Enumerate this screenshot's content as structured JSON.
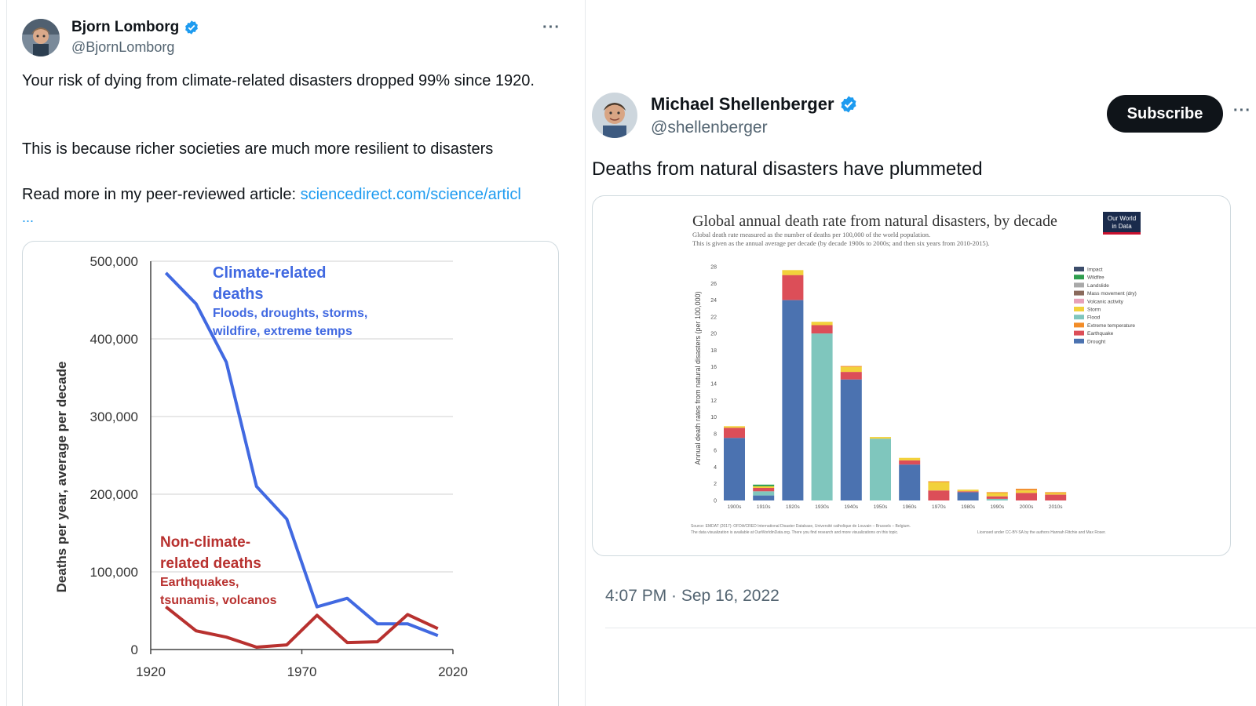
{
  "left_tweet": {
    "author_name": "Bjorn Lomborg",
    "author_handle": "@BjornLomborg",
    "more": "···",
    "text_line1": "Your risk of dying from climate-related disasters dropped 99% since 1920.",
    "text_line2": "This is because richer societies are much more resilient to disasters",
    "text_line3_prefix": "Read more in my peer-reviewed article: ",
    "link_text": "sciencedirect.com/science/articl",
    "link_ellipsis": "...",
    "chart_data": {
      "type": "line",
      "title": "",
      "xlabel": "",
      "ylabel": "Deaths per year, average per decade",
      "xlim": [
        1920,
        2020
      ],
      "ylim": [
        0,
        500000
      ],
      "x_ticks": [
        "1920",
        "1970",
        "2020"
      ],
      "y_ticks": [
        "0",
        "100,000",
        "200,000",
        "300,000",
        "400,000",
        "500,000"
      ],
      "grid": true,
      "series": [
        {
          "name": "Climate-related deaths",
          "subtitle": "Floods, droughts, storms, wildfire, extreme temps",
          "color": "#4169e1",
          "x": [
            1925,
            1935,
            1945,
            1955,
            1965,
            1975,
            1985,
            1995,
            2005,
            2015
          ],
          "y": [
            485000,
            445000,
            370000,
            210000,
            168000,
            55000,
            66000,
            33000,
            33000,
            18000
          ]
        },
        {
          "name": "Non-climate-related deaths",
          "subtitle": "Earthquakes, tsunamis, volcanos",
          "color": "#b8312f",
          "x": [
            1925,
            1935,
            1945,
            1955,
            1965,
            1975,
            1985,
            1995,
            2005,
            2015
          ],
          "y": [
            55000,
            24000,
            16000,
            3000,
            6000,
            44000,
            9000,
            10000,
            45000,
            27000
          ]
        }
      ]
    }
  },
  "right_tweet": {
    "author_name": "Michael Shellenberger",
    "author_handle": "@shellenberger",
    "subscribe_label": "Subscribe",
    "more": "···",
    "text": "Deaths from natural disasters have plummeted",
    "timestamp": "4:07 PM · Sep 16, 2022",
    "chart_data": {
      "type": "bar",
      "stacked": true,
      "title": "Global annual death rate from natural disasters, by decade",
      "subtitle_line1": "Global death rate measured as the number of deaths per 100,000 of the world population.",
      "subtitle_line2": "This is given as the annual average per decade (by decade 1900s to 2000s; and then six years from 2010-2015).",
      "logo_line1": "Our World",
      "logo_line2": "in Data",
      "ylabel": "Annual death rates from natural disasters (per 100,000)",
      "ylim": [
        0,
        28
      ],
      "y_ticks": [
        "0",
        "2",
        "4",
        "6",
        "8",
        "10",
        "12",
        "14",
        "16",
        "18",
        "20",
        "22",
        "24",
        "26",
        "28"
      ],
      "categories": [
        "1900s",
        "1910s",
        "1920s",
        "1930s",
        "1940s",
        "1950s",
        "1960s",
        "1970s",
        "1980s",
        "1990s",
        "2000s",
        "2010s"
      ],
      "legend_position": "top-right",
      "legend": [
        {
          "name": "Impact",
          "color": "#3c4d6b"
        },
        {
          "name": "Wildfire",
          "color": "#2f9e4f"
        },
        {
          "name": "Landslide",
          "color": "#a9a9a9"
        },
        {
          "name": "Mass movement (dry)",
          "color": "#8a6a5c"
        },
        {
          "name": "Volcanic activity",
          "color": "#e7a1b8"
        },
        {
          "name": "Storm",
          "color": "#f2d13b"
        },
        {
          "name": "Flood",
          "color": "#7fc6bd"
        },
        {
          "name": "Extreme temperature",
          "color": "#f28c28"
        },
        {
          "name": "Earthquake",
          "color": "#dc4e58"
        },
        {
          "name": "Drought",
          "color": "#4b72b0"
        }
      ],
      "series": [
        {
          "name": "Drought",
          "color": "#4b72b0",
          "values": [
            7.5,
            0.6,
            24.0,
            0.0,
            14.5,
            0.0,
            4.3,
            0.0,
            1.0,
            0.0,
            0.0,
            0.0
          ]
        },
        {
          "name": "Flood",
          "color": "#7fc6bd",
          "values": [
            0.0,
            0.5,
            0.0,
            20.0,
            0.0,
            7.4,
            0.0,
            0.0,
            0.0,
            0.2,
            0.0,
            0.0
          ]
        },
        {
          "name": "Earthquake",
          "color": "#dc4e58",
          "values": [
            1.2,
            0.4,
            3.0,
            1.0,
            0.9,
            0.0,
            0.5,
            1.2,
            0.1,
            0.3,
            0.9,
            0.7
          ]
        },
        {
          "name": "Storm",
          "color": "#f2d13b",
          "values": [
            0.2,
            0.2,
            0.6,
            0.4,
            0.6,
            0.2,
            0.3,
            1.0,
            0.2,
            0.4,
            0.3,
            0.2
          ]
        },
        {
          "name": "Wildfire",
          "color": "#2f9e4f",
          "values": [
            0.0,
            0.2,
            0.0,
            0.0,
            0.0,
            0.0,
            0.0,
            0.0,
            0.0,
            0.0,
            0.0,
            0.0
          ]
        },
        {
          "name": "Extreme temperature",
          "color": "#f28c28",
          "values": [
            0.0,
            0.0,
            0.0,
            0.0,
            0.1,
            0.0,
            0.0,
            0.1,
            0.0,
            0.1,
            0.2,
            0.1
          ]
        }
      ],
      "source_line1": "Source: EMDAT (2017): OFDA/CRED International Disaster Database, Université catholique de Louvain – Brussels – Belgium.",
      "source_line2": "The data visualization is available at OurWorldinData.org. There you find research and more visualizations on this topic.",
      "license": "Licensed under CC-BY-SA by the authors Hannah Ritchie and Max Roser."
    }
  }
}
